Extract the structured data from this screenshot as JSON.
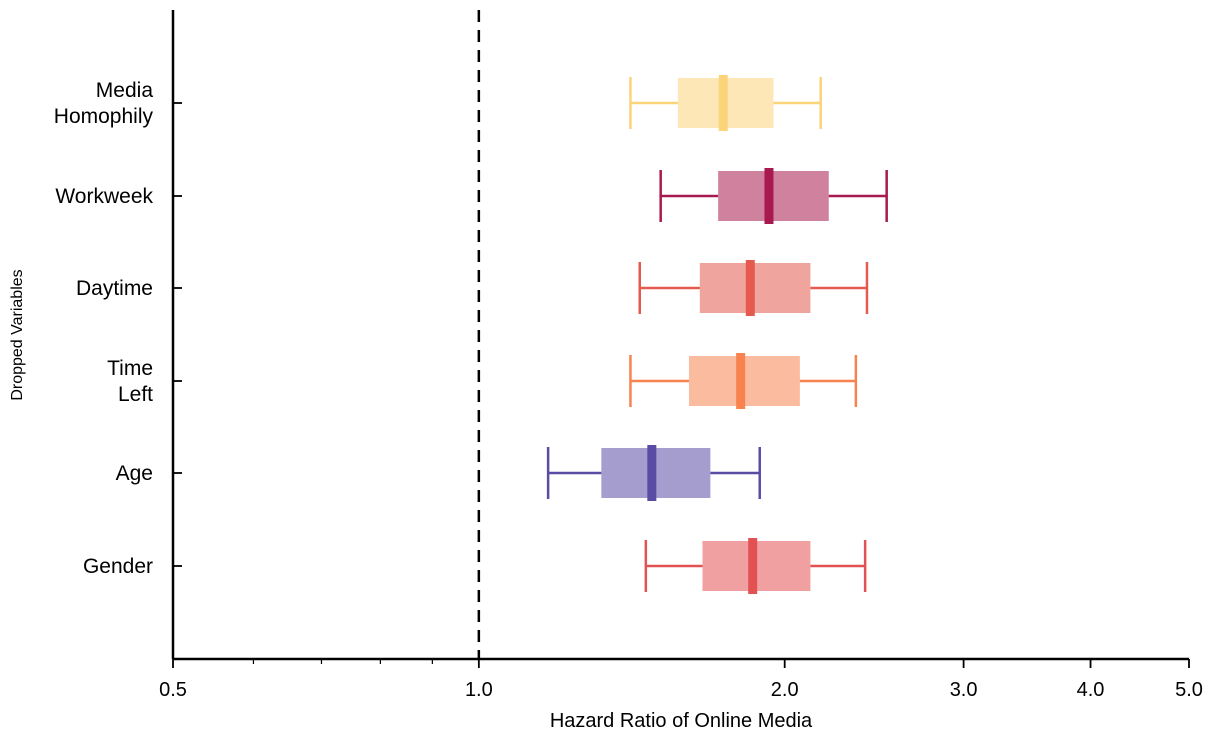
{
  "chart_data": {
    "type": "boxplot",
    "orientation": "horizontal",
    "xlabel": "Hazard Ratio of Online Media",
    "ylabel": "Dropped Variables",
    "xscale": "log",
    "xlim": [
      0.5,
      5.0
    ],
    "xticks": [
      {
        "value": 0.5,
        "label": "0.5"
      },
      {
        "value": 1.0,
        "label": "1.0"
      },
      {
        "value": 2.0,
        "label": "2.0"
      },
      {
        "value": 3.0,
        "label": "3.0"
      },
      {
        "value": 4.0,
        "label": "4.0"
      },
      {
        "value": 5.0,
        "label": "5.0"
      }
    ],
    "minor_ticks": [
      0.6,
      0.7,
      0.8,
      0.9
    ],
    "reference_line": {
      "x": 1.0,
      "style": "dashed"
    },
    "grid": false,
    "categories": [
      {
        "label": [
          "Media",
          "Homophily"
        ],
        "whisker_low": 1.41,
        "q1": 1.57,
        "median": 1.74,
        "q3": 1.95,
        "whisker_high": 2.17,
        "color": "#fbd47a"
      },
      {
        "label": [
          "Workweek"
        ],
        "whisker_low": 1.51,
        "q1": 1.72,
        "median": 1.93,
        "q3": 2.21,
        "whisker_high": 2.52,
        "color": "#a8194f"
      },
      {
        "label": [
          "Daytime"
        ],
        "whisker_low": 1.44,
        "q1": 1.65,
        "median": 1.85,
        "q3": 2.12,
        "whisker_high": 2.41,
        "color": "#e45a4e"
      },
      {
        "label": [
          "Time",
          "Left"
        ],
        "whisker_low": 1.41,
        "q1": 1.61,
        "median": 1.81,
        "q3": 2.07,
        "whisker_high": 2.35,
        "color": "#f8834f"
      },
      {
        "label": [
          "Age"
        ],
        "whisker_low": 1.17,
        "q1": 1.32,
        "median": 1.48,
        "q3": 1.69,
        "whisker_high": 1.89,
        "color": "#5a4ca5"
      },
      {
        "label": [
          "Gender"
        ],
        "whisker_low": 1.46,
        "q1": 1.66,
        "median": 1.86,
        "q3": 2.12,
        "whisker_high": 2.4,
        "color": "#e35252"
      }
    ]
  }
}
